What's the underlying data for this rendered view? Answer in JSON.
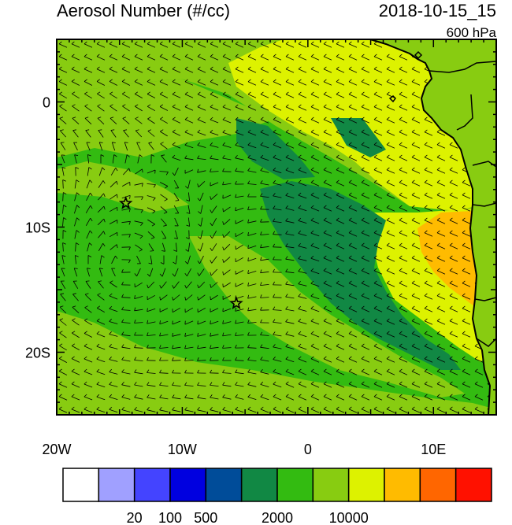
{
  "header": {
    "title": "Aerosol Number (#/cc)",
    "datetime": "2018-10-15_15",
    "level": "600 hPa"
  },
  "map": {
    "lon_range": [
      -20,
      15
    ],
    "lat_range": [
      -25,
      5
    ],
    "lon_ticks": [
      {
        "value": -20,
        "label": "20W"
      },
      {
        "value": -10,
        "label": "10W"
      },
      {
        "value": 0,
        "label": "0"
      },
      {
        "value": 10,
        "label": "10E"
      }
    ],
    "lat_ticks": [
      {
        "value": 0,
        "label": "0"
      },
      {
        "value": -10,
        "label": "10S"
      },
      {
        "value": -20,
        "label": "20S"
      }
    ],
    "markers": [
      {
        "name": "star-marker",
        "lon": -14.5,
        "lat": -8.1
      },
      {
        "name": "star-marker",
        "lon": -5.7,
        "lat": -16.1
      }
    ],
    "colors": {
      "ocean_bg": "#33bb11",
      "lt_green": "#88cc11",
      "yellow": "#ddf200",
      "dark_green": "#118844",
      "orange": "#ffbb00",
      "coast": "#000000"
    }
  },
  "colorbar": {
    "colors": [
      "#ffffff",
      "#a0a0ff",
      "#4444ff",
      "#0000e0",
      "#004c99",
      "#118844",
      "#33bb11",
      "#88cc11",
      "#ddf200",
      "#ffbb00",
      "#ff6600",
      "#ff1100"
    ],
    "labels": [
      {
        "after_box": 2,
        "text": "20"
      },
      {
        "after_box": 3,
        "text": "100"
      },
      {
        "after_box": 4,
        "text": "500"
      },
      {
        "after_box": 6,
        "text": "2000"
      },
      {
        "after_box": 8,
        "text": "10000"
      }
    ]
  }
}
